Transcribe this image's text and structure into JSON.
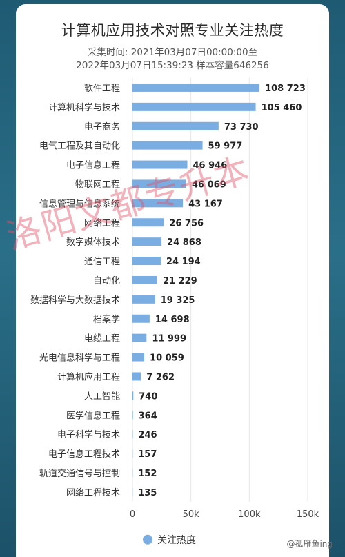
{
  "chart_data": {
    "type": "bar",
    "orientation": "horizontal",
    "title": "计算机应用技术对照专业关注热度",
    "subtitle_line1": "采集时间: 2021年03月07日00:00:00至",
    "subtitle_line2": "2022年03月07日15:39:23 样本容量646256",
    "categories": [
      "软件工程",
      "计算机科学与技术",
      "电子商务",
      "电气工程及其自动化",
      "电子信息工程",
      "物联网工程",
      "信息管理与信息系统",
      "网络工程",
      "数字媒体技术",
      "通信工程",
      "自动化",
      "数据科学与大数据技术",
      "档案学",
      "电缆工程",
      "光电信息科学与工程",
      "计算机应用工程",
      "人工智能",
      "医学信息工程",
      "电子科学与技术",
      "电子信息工程技术",
      "轨道交通信号与控制",
      "网络工程技术"
    ],
    "series": [
      {
        "name": "关注热度",
        "values": [
          108723,
          105460,
          73730,
          59977,
          46946,
          46069,
          43167,
          26756,
          24868,
          24194,
          21229,
          19325,
          14698,
          11999,
          10059,
          7262,
          740,
          364,
          246,
          157,
          152,
          135
        ],
        "labels": [
          "108 723",
          "105 460",
          "73 730",
          "59 977",
          "46 946",
          "46 069",
          "43 167",
          "26 756",
          "24 868",
          "24 194",
          "21 229",
          "19 325",
          "14 698",
          "11 999",
          "10 059",
          "7 262",
          "740",
          "364",
          "246",
          "157",
          "152",
          "135"
        ]
      }
    ],
    "xlim": [
      0,
      150000
    ],
    "xticks": [
      "0",
      "50k",
      "100k",
      "150k"
    ],
    "grid": true,
    "legend": "bottom-center",
    "bar_color": "#7aaee3"
  },
  "watermark": "洛阳文都专升本",
  "credit": "@孤雁鱼ing"
}
